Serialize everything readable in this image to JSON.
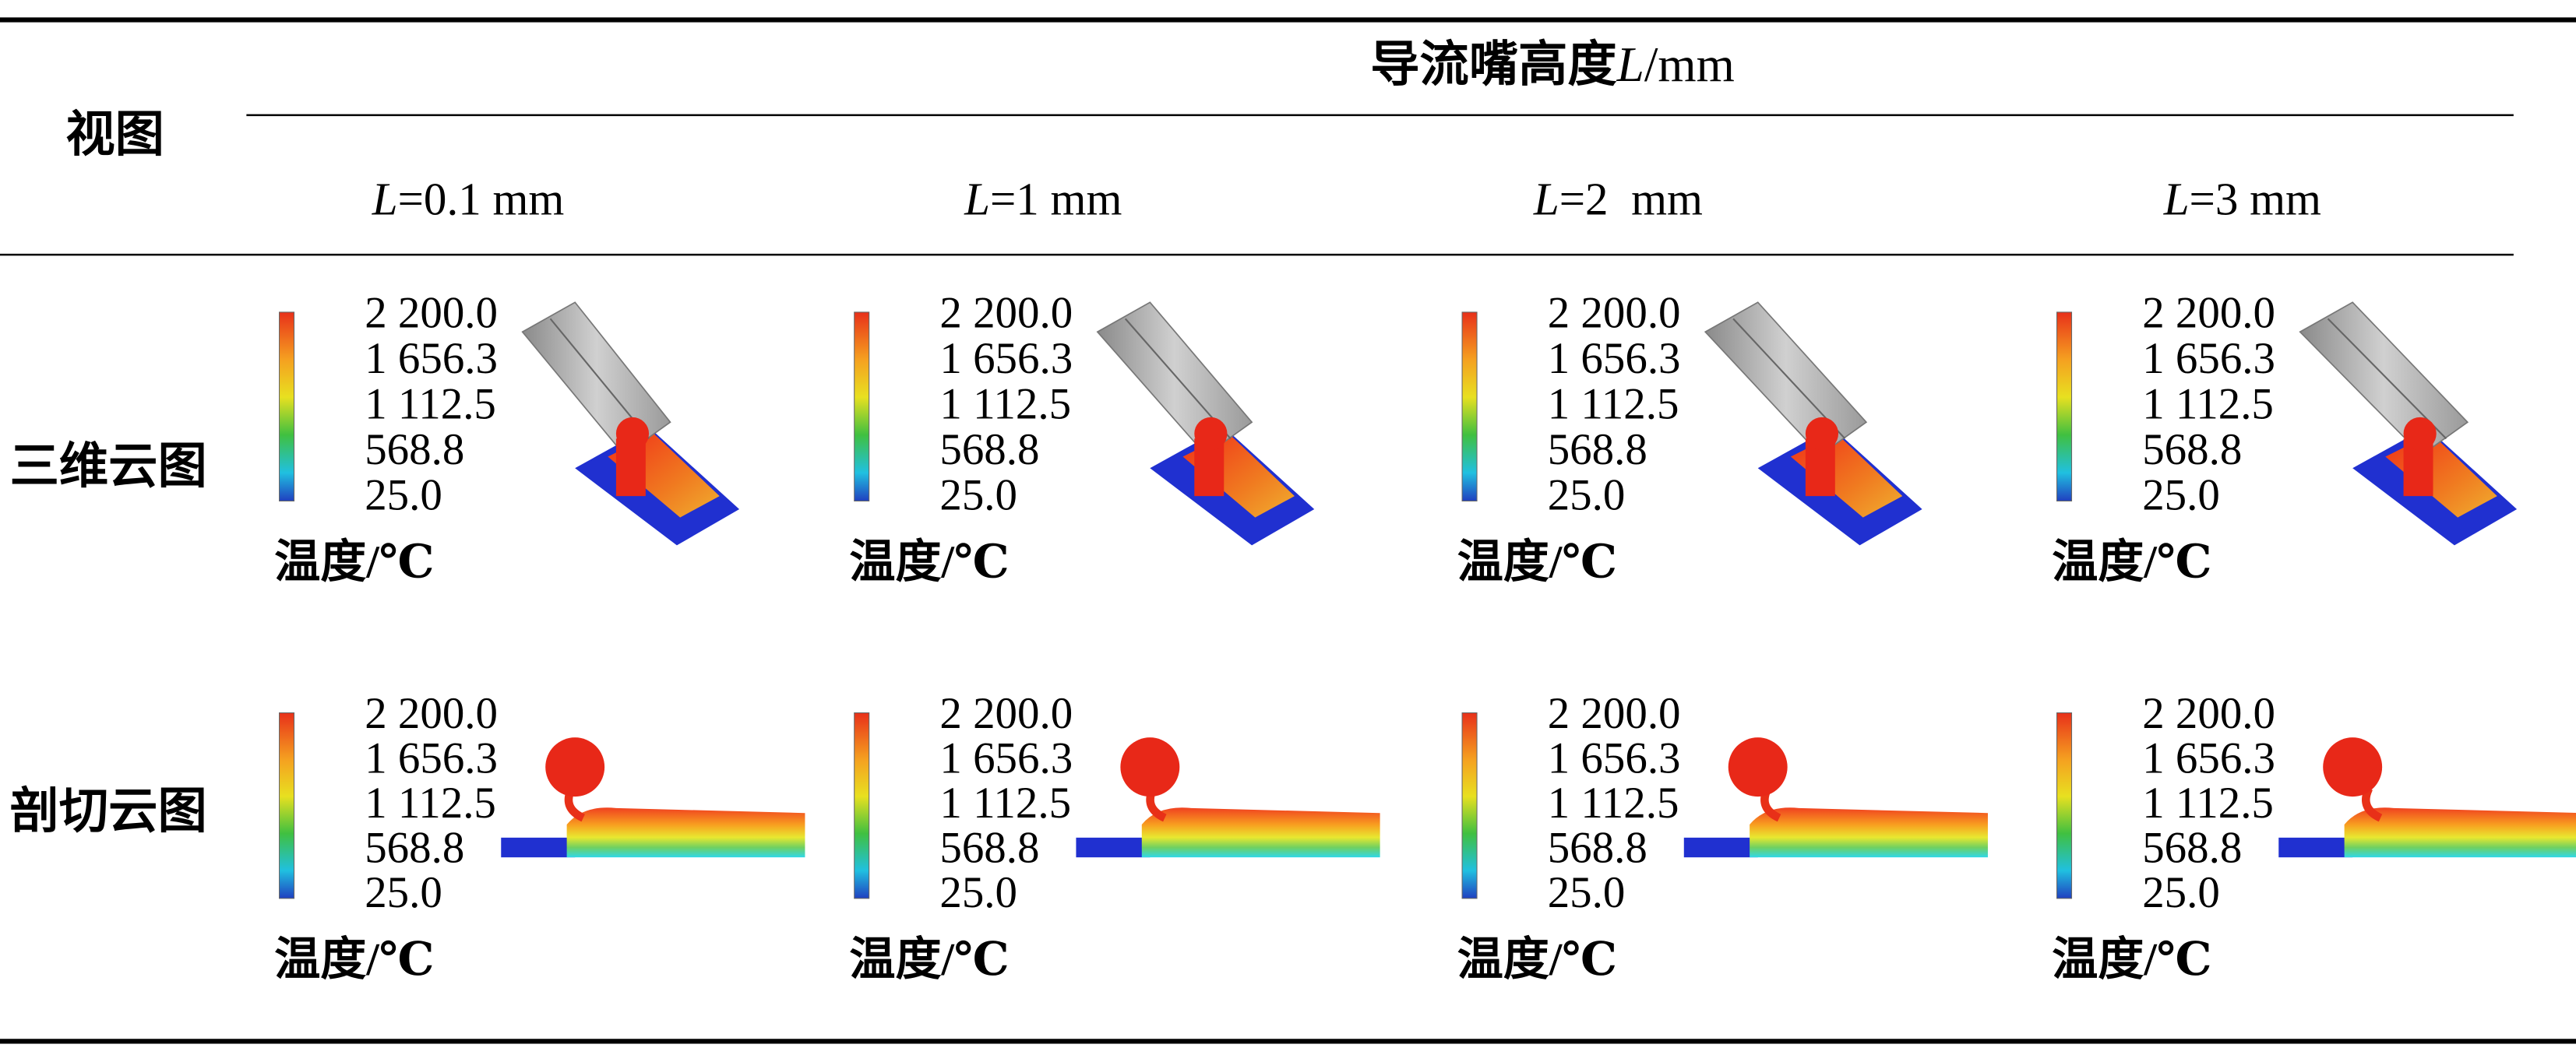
{
  "header": {
    "view_label": "视图",
    "group_title": {
      "prefix": "导流嘴高度",
      "symbol": "L",
      "suffix": "/mm"
    },
    "columns": [
      {
        "symbol": "L",
        "text": "=0.1 mm"
      },
      {
        "symbol": "L",
        "text": "=1 mm"
      },
      {
        "symbol": "L",
        "text": "=2  mm"
      },
      {
        "symbol": "L",
        "text": "=3 mm"
      }
    ]
  },
  "rows": [
    {
      "label": "三维云图"
    },
    {
      "label": "剖切云图"
    }
  ],
  "legend": {
    "ticks": [
      "2 200.0",
      "1 656.3",
      "1 112.5",
      "568.8",
      "25.0"
    ],
    "title": "温度/℃"
  }
}
